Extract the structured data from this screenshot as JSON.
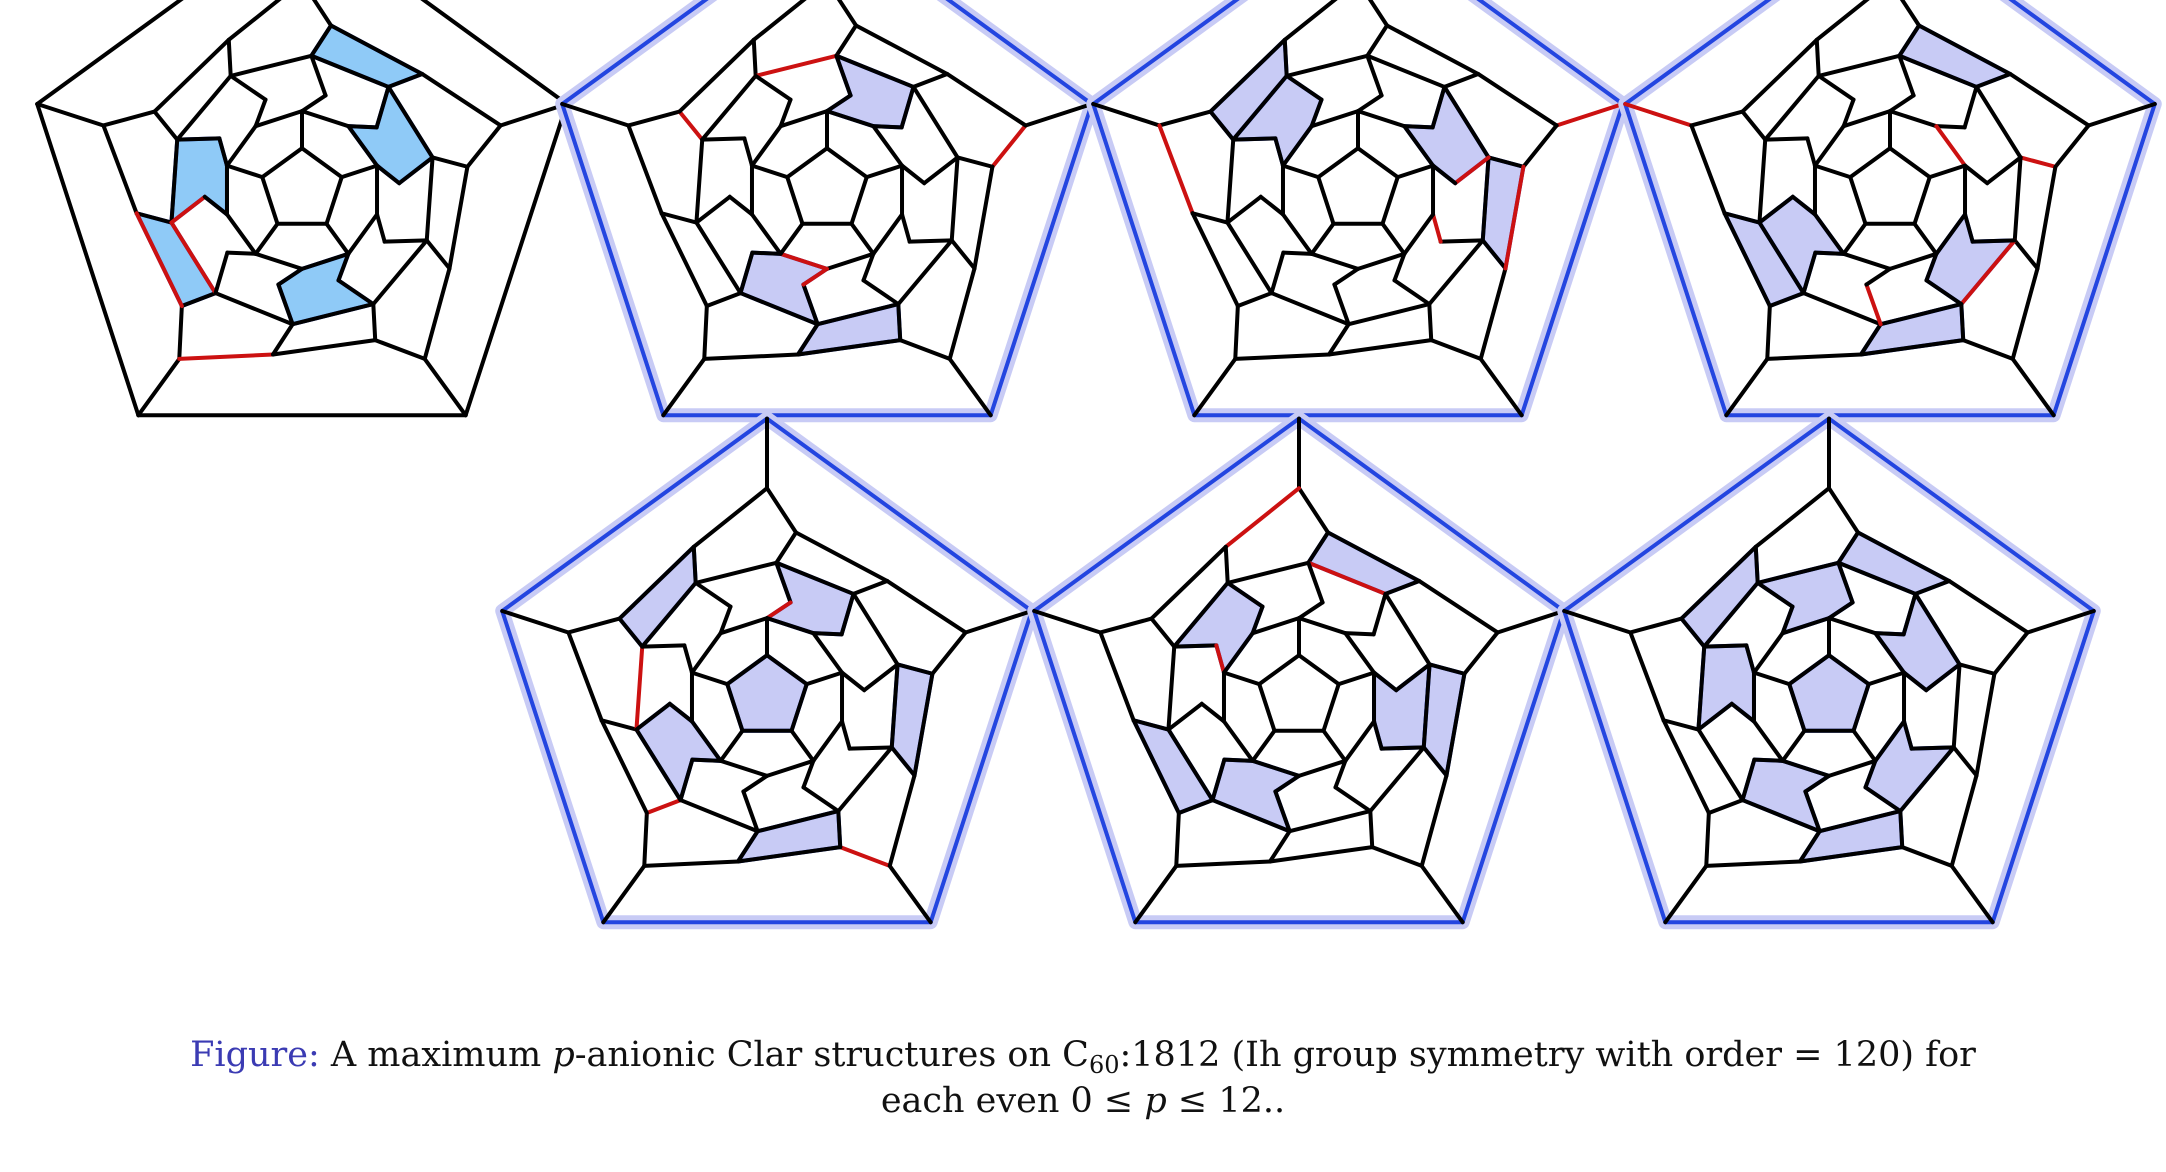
{
  "caption": {
    "lead": "Figure:",
    "text_a": " A maximum ",
    "p_var": "p",
    "text_b": "-anionic Clar structures on C",
    "sub": "60",
    "text_c": ":1812 (Ih group symmetry with order = 120) for",
    "line2_a": "each even 0 ≤ ",
    "line2_p": "p",
    "line2_b": " ≤ 12.."
  },
  "colors": {
    "bond": "#000000",
    "double_bond": "#cc1111",
    "sextet_edge": "#2345e0",
    "sextet_fill_strong": "#8fcaf7",
    "sextet_fill_light": "#c8cbf5",
    "frame_halo": "#c8cbf5"
  },
  "diagrams": [
    {
      "id": "p0",
      "frame_halo": false
    },
    {
      "id": "p2",
      "frame_halo": true
    },
    {
      "id": "p4",
      "frame_halo": true
    },
    {
      "id": "p6",
      "frame_halo": true
    },
    {
      "id": "p8",
      "frame_halo": true
    },
    {
      "id": "p10",
      "frame_halo": true
    },
    {
      "id": "p12",
      "frame_halo": true
    }
  ]
}
